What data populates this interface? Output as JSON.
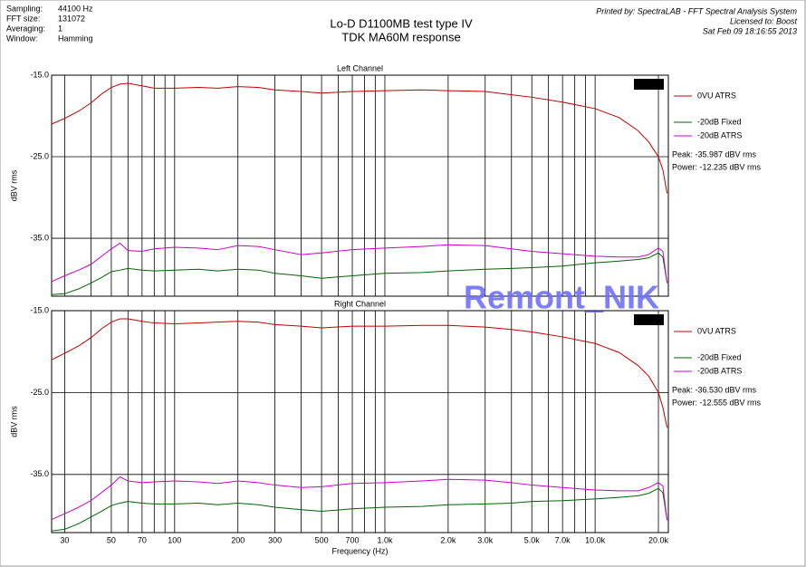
{
  "header": {
    "info": [
      [
        "Sampling:",
        "44100 Hz"
      ],
      [
        "FFT size:",
        "131072"
      ],
      [
        "Averaging:",
        "1"
      ],
      [
        "Window:",
        "Hamming"
      ]
    ],
    "title": [
      "Lo-D D1100MB test type IV",
      "TDK MA60M response"
    ],
    "printed": [
      "Printed by: SpectraLAB - FFT Spectral Analysis System",
      "Licensed to: Boost",
      "Sat Feb 09 18:16:55 2013"
    ]
  },
  "watermark": "Remont_NIK",
  "chart_data": [
    {
      "type": "line",
      "title": "Left Channel",
      "ylabel": "dBV rms",
      "xscale": "log",
      "legend": "right",
      "x": [
        26,
        30,
        35,
        40,
        45,
        50,
        55,
        60,
        70,
        80,
        100,
        130,
        160,
        200,
        250,
        300,
        400,
        500,
        700,
        1000,
        1500,
        2000,
        3000,
        4000,
        5000,
        7000,
        10000,
        13000,
        16000,
        18000,
        20000,
        21000,
        22000
      ],
      "series": [
        {
          "name": "0VU ATRS",
          "color": "#c00000",
          "values": [
            -21.0,
            -20.3,
            -19.4,
            -18.4,
            -17.3,
            -16.5,
            -16.1,
            -16.0,
            -16.3,
            -16.6,
            -16.6,
            -16.5,
            -16.6,
            -16.4,
            -16.5,
            -16.8,
            -17.0,
            -17.2,
            -17.0,
            -16.9,
            -16.8,
            -16.9,
            -17.0,
            -17.4,
            -17.7,
            -18.3,
            -19.1,
            -20.2,
            -21.8,
            -23.2,
            -25.0,
            -26.6,
            -29.5
          ]
        },
        {
          "name": "-20dB Fixed",
          "color": "#006400",
          "values": [
            -41.9,
            -41.8,
            -41.2,
            -40.5,
            -39.8,
            -39.1,
            -38.9,
            -38.7,
            -38.9,
            -39.0,
            -38.9,
            -38.8,
            -39.0,
            -38.8,
            -38.9,
            -39.3,
            -39.6,
            -39.9,
            -39.6,
            -39.3,
            -39.2,
            -39.0,
            -38.8,
            -38.7,
            -38.6,
            -38.4,
            -38.0,
            -37.8,
            -37.6,
            -37.4,
            -36.8,
            -37.3,
            -40.5
          ]
        },
        {
          "name": "-20dB ATRS",
          "color": "#cc00cc",
          "values": [
            -40.3,
            -39.6,
            -38.9,
            -38.2,
            -37.2,
            -36.3,
            -35.6,
            -36.5,
            -36.6,
            -36.3,
            -36.1,
            -36.2,
            -36.4,
            -35.9,
            -36.0,
            -36.4,
            -37.0,
            -36.8,
            -36.4,
            -36.2,
            -36.0,
            -35.8,
            -35.9,
            -36.3,
            -36.6,
            -36.9,
            -37.2,
            -37.3,
            -37.3,
            -37.0,
            -36.2,
            -36.6,
            -40.5
          ]
        }
      ],
      "annotations": [
        "Peak: -35.987 dBV rms",
        "Power: -12.235 dBV rms"
      ],
      "xlim": [
        26,
        22300
      ],
      "ylim": [
        -42.1,
        -15
      ],
      "yticks": [
        {
          "value": -15,
          "label": "-15.0"
        },
        {
          "value": -25,
          "label": "-25.0"
        },
        {
          "value": -35,
          "label": "-35.0"
        }
      ],
      "xgrid": [
        30,
        40,
        50,
        60,
        70,
        80,
        90,
        100,
        200,
        300,
        400,
        500,
        600,
        700,
        800,
        900,
        1000,
        2000,
        3000,
        4000,
        5000,
        6000,
        7000,
        8000,
        9000,
        10000,
        20000
      ],
      "grid": true
    },
    {
      "type": "line",
      "title": "Right Channel",
      "ylabel": "dBV rms",
      "xlabel": "Frequency (Hz)",
      "xscale": "log",
      "legend": "right",
      "x": [
        26,
        30,
        35,
        40,
        45,
        50,
        55,
        60,
        70,
        80,
        100,
        130,
        160,
        200,
        250,
        300,
        400,
        500,
        700,
        1000,
        1500,
        2000,
        3000,
        4000,
        5000,
        7000,
        10000,
        13000,
        16000,
        18000,
        20000,
        21000,
        22000
      ],
      "series": [
        {
          "name": "0VU ATRS",
          "color": "#c00000",
          "values": [
            -21.0,
            -20.2,
            -19.3,
            -18.3,
            -17.2,
            -16.4,
            -16.0,
            -16.0,
            -16.3,
            -16.5,
            -16.6,
            -16.5,
            -16.4,
            -16.3,
            -16.4,
            -16.7,
            -16.9,
            -17.1,
            -16.9,
            -16.9,
            -16.8,
            -16.8,
            -17.0,
            -17.3,
            -17.6,
            -18.2,
            -19.0,
            -20.1,
            -21.7,
            -23.0,
            -25.0,
            -26.8,
            -29.3
          ]
        },
        {
          "name": "-20dB Fixed",
          "color": "#006400",
          "values": [
            -41.9,
            -41.7,
            -41.0,
            -40.2,
            -39.5,
            -38.8,
            -38.5,
            -38.3,
            -38.5,
            -38.6,
            -38.6,
            -38.5,
            -38.7,
            -38.5,
            -38.7,
            -39.0,
            -39.3,
            -39.5,
            -39.2,
            -39.0,
            -38.9,
            -38.7,
            -38.6,
            -38.5,
            -38.3,
            -38.2,
            -38.0,
            -37.8,
            -37.6,
            -37.3,
            -36.7,
            -37.2,
            -40.6
          ]
        },
        {
          "name": "-20dB ATRS",
          "color": "#cc00cc",
          "values": [
            -40.5,
            -39.8,
            -39.0,
            -38.2,
            -37.2,
            -36.3,
            -35.3,
            -35.8,
            -36.0,
            -35.9,
            -35.8,
            -35.9,
            -36.1,
            -35.8,
            -36.0,
            -36.3,
            -36.6,
            -36.5,
            -36.1,
            -36.0,
            -35.8,
            -35.6,
            -35.7,
            -36.0,
            -36.3,
            -36.6,
            -36.9,
            -37.0,
            -37.0,
            -36.6,
            -36.0,
            -36.4,
            -40.6
          ]
        }
      ],
      "annotations": [
        "Peak: -36.530 dBV rms",
        "Power: -12.555 dBV rms"
      ],
      "xlim": [
        26,
        22300
      ],
      "ylim": [
        -42.1,
        -15
      ],
      "yticks": [
        {
          "value": -15,
          "label": "-15.0"
        },
        {
          "value": -25,
          "label": "-25.0"
        },
        {
          "value": -35,
          "label": "-35.0"
        }
      ],
      "xticks": [
        30,
        50,
        70,
        100,
        200,
        300,
        500,
        700,
        {
          "value": 1000,
          "label": "1.0k"
        },
        {
          "value": 2000,
          "label": "2.0k"
        },
        {
          "value": 3000,
          "label": "3.0k"
        },
        {
          "value": 5000,
          "label": "5.0k"
        },
        {
          "value": 7000,
          "label": "7.0k"
        },
        {
          "value": 10000,
          "label": "10.0k"
        },
        {
          "value": 20000,
          "label": "20.0k"
        }
      ],
      "xgrid": [
        40,
        60,
        80,
        90,
        400,
        600,
        800,
        900,
        4000,
        6000,
        8000,
        9000
      ],
      "grid": true
    }
  ]
}
